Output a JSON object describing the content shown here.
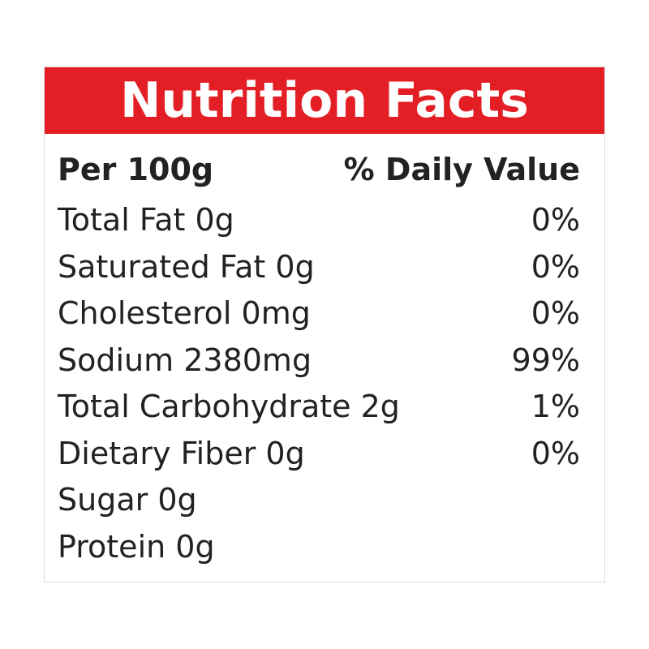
{
  "title": "Nutrition Facts",
  "header": {
    "left": "Per 100g",
    "right": "% Daily Value"
  },
  "rows": [
    {
      "label": "Total Fat 0g",
      "dv": "0%"
    },
    {
      "label": "Saturated Fat 0g",
      "dv": "0%"
    },
    {
      "label": "Cholesterol 0mg",
      "dv": "0%"
    },
    {
      "label": "Sodium 2380mg",
      "dv": "99%"
    },
    {
      "label": "Total Carbohydrate 2g",
      "dv": "1%"
    },
    {
      "label": "Dietary Fiber 0g",
      "dv": "0%"
    },
    {
      "label": "Sugar 0g",
      "dv": ""
    },
    {
      "label": "Protein 0g",
      "dv": ""
    }
  ],
  "colors": {
    "header_bg": "#e31e24"
  }
}
